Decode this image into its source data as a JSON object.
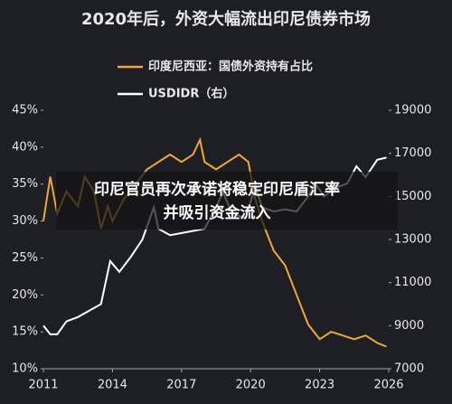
{
  "chart_data": {
    "type": "line",
    "title": "2020年后，外资大幅流出印尼债券市场",
    "xlim": [
      2011,
      2026
    ],
    "xticks": [
      2011,
      2014,
      2017,
      2020,
      2023,
      2026
    ],
    "ylim": [
      10,
      45
    ],
    "yticks": [
      {
        "value": 10,
        "label": "10%"
      },
      {
        "value": 15,
        "label": "15%"
      },
      {
        "value": 20,
        "label": "20%"
      },
      {
        "value": 25,
        "label": "25%"
      },
      {
        "value": 30,
        "label": "30%"
      },
      {
        "value": 35,
        "label": "35%"
      },
      {
        "value": 40,
        "label": "40%"
      },
      {
        "value": 45,
        "label": "45%"
      }
    ],
    "y2lim": [
      7000,
      19000
    ],
    "y2ticks": [
      7000,
      9000,
      11000,
      13000,
      15000,
      17000,
      19000
    ],
    "series": [
      {
        "name": "印度尼西亚：国债外资持有占比",
        "color": "#f0a830",
        "x": [
          2011,
          2011.3,
          2011.6,
          2012,
          2012.5,
          2012.8,
          2013.2,
          2013.5,
          2013.8,
          2014,
          2014.5,
          2015,
          2015.5,
          2016,
          2016.5,
          2017,
          2017.5,
          2017.8,
          2018,
          2018.5,
          2019,
          2019.5,
          2019.9,
          2020.2,
          2020.5,
          2021,
          2021.5,
          2022,
          2022.5,
          2023,
          2023.5,
          2024,
          2024.5,
          2025,
          2025.5,
          2025.9
        ],
        "values": [
          30,
          36,
          31,
          34,
          32,
          36,
          34,
          29,
          32,
          30,
          33,
          35,
          37,
          38,
          39,
          38,
          39,
          41,
          38,
          37,
          38,
          39,
          38,
          33,
          30,
          26,
          24,
          20,
          16,
          14,
          15,
          14.5,
          14,
          14.5,
          13.5,
          13
        ]
      },
      {
        "name": "USDIDR（右）",
        "color": "#ffffff",
        "axis": "y2",
        "x": [
          2011,
          2011.3,
          2011.6,
          2012,
          2012.5,
          2013,
          2013.5,
          2013.9,
          2014.3,
          2014.8,
          2015.3,
          2015.8,
          2016,
          2016.5,
          2017,
          2017.5,
          2018,
          2018.5,
          2018.8,
          2019.2,
          2019.8,
          2020.2,
          2020.5,
          2021,
          2021.5,
          2022,
          2022.5,
          2022.8,
          2023.2,
          2023.7,
          2024.2,
          2024.6,
          2025,
          2025.5,
          2025.9
        ],
        "values": [
          9000,
          8600,
          8600,
          9200,
          9400,
          9700,
          10000,
          12000,
          11500,
          12200,
          13000,
          14500,
          13500,
          13200,
          13300,
          13400,
          13500,
          14500,
          15200,
          14200,
          14000,
          15500,
          14500,
          14300,
          14400,
          14300,
          15000,
          15600,
          15000,
          15400,
          15600,
          16400,
          15900,
          16700,
          16800
        ]
      }
    ]
  },
  "caption": [
    "印尼官员再次承诺将稳定印尼盾汇率",
    "并吸引资金流入"
  ]
}
